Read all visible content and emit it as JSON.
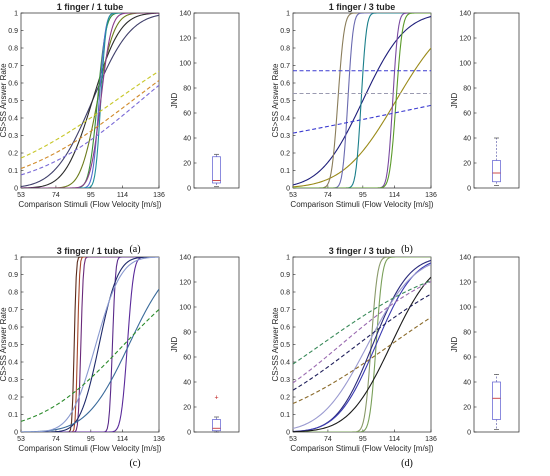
{
  "chart_data": [
    {
      "id": "a",
      "type": "line",
      "title": "1 finger / 1 tube",
      "xlabel": "Comparison Stimuli (Flow Velocity [m/s])",
      "ylabel": "CS>SS Answer Rate",
      "caption": "(a)",
      "xlim": [
        53,
        136
      ],
      "ylim": [
        0,
        1
      ],
      "xticks": [
        "53",
        "74",
        "95",
        "114",
        "136"
      ],
      "yticks": [
        "0",
        "0.1",
        "0.2",
        "0.3",
        "0.4",
        "0.5",
        "0.6",
        "0.7",
        "0.8",
        "0.9",
        "1"
      ],
      "grid": false,
      "series": [
        {
          "mu": 96,
          "sigma": 18,
          "color": "#3f3f6a",
          "style": "solid"
        },
        {
          "mu": 96,
          "sigma": 13,
          "color": "#2a2a2a",
          "style": "solid"
        },
        {
          "mu": 99,
          "sigma": 8,
          "color": "#6c7c1c",
          "style": "solid"
        },
        {
          "mu": 99,
          "sigma": 4,
          "color": "#3a8e3a",
          "style": "solid"
        },
        {
          "mu": 100,
          "sigma": 3,
          "color": "#5a6ad0",
          "style": "solid"
        },
        {
          "mu": 101,
          "sigma": 2.5,
          "color": "#1f8f9a",
          "style": "solid"
        },
        {
          "mu": 101,
          "sigma": 5,
          "color": "#8a3d8a",
          "style": "solid"
        },
        {
          "mu": 110,
          "sigma": 60,
          "color": "#c7c728",
          "style": "dashed"
        },
        {
          "mu": 120,
          "sigma": 55,
          "color": "#d08a2a",
          "style": "dashed"
        },
        {
          "mu": 125,
          "sigma": 50,
          "color": "#7a6ad6",
          "style": "dashed"
        }
      ],
      "jnd": {
        "ylabel": "JND",
        "ylim": [
          0,
          140
        ],
        "yticks": [
          "0",
          "20",
          "40",
          "60",
          "80",
          "100",
          "120",
          "140"
        ],
        "q1": 4,
        "median": 6,
        "q3": 25,
        "whisker_low": 1,
        "whisker_high": 27,
        "outliers": []
      }
    },
    {
      "id": "b",
      "type": "line",
      "title": "1 finger / 3 tube",
      "xlabel": "Comparison Stimuli (Flow Velocity [m/s])",
      "ylabel": "CS>SS Answer Rate",
      "caption": "(b)",
      "xlim": [
        53,
        136
      ],
      "ylim": [
        0,
        1
      ],
      "xticks": [
        "53",
        "74",
        "95",
        "114",
        "136"
      ],
      "yticks": [
        "0",
        "0.1",
        "0.2",
        "0.3",
        "0.4",
        "0.5",
        "0.6",
        "0.7",
        "0.8",
        "0.9",
        "1"
      ],
      "grid": false,
      "series": [
        {
          "mu": 95,
          "sigma": 20,
          "color": "#1e1e7a",
          "style": "solid"
        },
        {
          "mu": 115,
          "sigma": 25,
          "color": "#9a8a18",
          "style": "solid"
        },
        {
          "mu": 80,
          "sigma": 3,
          "color": "#8a7d5a",
          "style": "solid"
        },
        {
          "mu": 86,
          "sigma": 2.5,
          "color": "#6a6ab0",
          "style": "solid"
        },
        {
          "mu": 94,
          "sigma": 2.5,
          "color": "#1a7f8a",
          "style": "solid"
        },
        {
          "mu": 113,
          "sigma": 2.5,
          "color": "#7a4aa0",
          "style": "solid"
        },
        {
          "mu": 115,
          "sigma": 3,
          "color": "#5a9a2a",
          "style": "solid"
        },
        {
          "flat": 0.67,
          "color": "#3a3ad0",
          "style": "dashed"
        },
        {
          "flat": 0.54,
          "color": "#9a9ab0",
          "style": "dashed"
        },
        {
          "mu": 150,
          "sigma": 200,
          "color": "#3a3ad0",
          "style": "dashed"
        }
      ],
      "jnd": {
        "ylabel": "JND",
        "ylim": [
          0,
          140
        ],
        "yticks": [
          "0",
          "20",
          "40",
          "60",
          "80",
          "100",
          "120",
          "140"
        ],
        "q1": 5,
        "median": 12,
        "q3": 22,
        "whisker_low": 2,
        "whisker_high": 40,
        "outliers": []
      }
    },
    {
      "id": "c",
      "type": "line",
      "title": "3 finger / 1 tube",
      "xlabel": "Comparison Stimuli (Flow Velocity [m/s])",
      "ylabel": "CS>SS Answer Rate",
      "caption": "(c)",
      "xlim": [
        53,
        136
      ],
      "ylim": [
        0,
        1
      ],
      "xticks": [
        "53",
        "74",
        "95",
        "114",
        "136"
      ],
      "yticks": [
        "0",
        "0.1",
        "0.2",
        "0.3",
        "0.4",
        "0.5",
        "0.6",
        "0.7",
        "0.8",
        "0.9",
        "1"
      ],
      "grid": false,
      "series": [
        {
          "mu": 85,
          "sigma": 1,
          "color": "#5a2a1a",
          "style": "solid"
        },
        {
          "mu": 87,
          "sigma": 1,
          "color": "#a8472a",
          "style": "solid"
        },
        {
          "mu": 89,
          "sigma": 1.2,
          "color": "#6a2a7a",
          "style": "solid"
        },
        {
          "mu": 108,
          "sigma": 1.5,
          "color": "#5a2a8a",
          "style": "solid"
        },
        {
          "mu": 117,
          "sigma": 3,
          "color": "#5a2a9a",
          "style": "solid"
        },
        {
          "mu": 100,
          "sigma": 9,
          "color": "#1e2a6a",
          "style": "solid"
        },
        {
          "mu": 118,
          "sigma": 20,
          "color": "#3a6a9a",
          "style": "solid"
        },
        {
          "mu": 98,
          "sigma": 12,
          "color": "#8a9ad0",
          "style": "solid"
        },
        {
          "mu": 115,
          "sigma": 40,
          "color": "#2a8a2a",
          "style": "dashed"
        }
      ],
      "jnd": {
        "ylabel": "JND",
        "ylim": [
          0,
          140
        ],
        "yticks": [
          "0",
          "20",
          "40",
          "60",
          "80",
          "100",
          "120",
          "140"
        ],
        "q1": 1,
        "median": 3,
        "q3": 10,
        "whisker_low": 0,
        "whisker_high": 12,
        "outliers": [
          28
        ]
      }
    },
    {
      "id": "d",
      "type": "line",
      "title": "3 finger / 3 tube",
      "xlabel": "Comparison Stimuli (Flow Velocity [m/s])",
      "ylabel": "CS>SS Answer Rate",
      "caption": "(d)",
      "xlim": [
        53,
        136
      ],
      "ylim": [
        0,
        1
      ],
      "xticks": [
        "53",
        "74",
        "95",
        "114",
        "136"
      ],
      "yticks": [
        "0",
        "0.1",
        "0.2",
        "0.3",
        "0.4",
        "0.5",
        "0.6",
        "0.7",
        "0.8",
        "0.9",
        "1"
      ],
      "grid": false,
      "series": [
        {
          "mu": 100,
          "sigma": 3,
          "color": "#8a9a6a",
          "style": "solid"
        },
        {
          "mu": 103,
          "sigma": 3,
          "color": "#7aa05a",
          "style": "solid"
        },
        {
          "mu": 101,
          "sigma": 17,
          "color": "#2a2a7a",
          "style": "solid"
        },
        {
          "mu": 103,
          "sigma": 18,
          "color": "#3a3ab0",
          "style": "solid"
        },
        {
          "mu": 98,
          "sigma": 22,
          "color": "#9a9ad0",
          "style": "solid"
        },
        {
          "mu": 112,
          "sigma": 20,
          "color": "#1a1a1a",
          "style": "solid"
        },
        {
          "mu": 70,
          "sigma": 60,
          "color": "#3a8a5a",
          "style": "dashed"
        },
        {
          "mu": 82,
          "sigma": 50,
          "color": "#9a6ab0",
          "style": "dashed"
        },
        {
          "mu": 92,
          "sigma": 55,
          "color": "#1e1e5a",
          "style": "dashed"
        },
        {
          "mu": 112,
          "sigma": 60,
          "color": "#8a6a2a",
          "style": "dashed"
        }
      ],
      "jnd": {
        "ylabel": "JND",
        "ylim": [
          0,
          140
        ],
        "yticks": [
          "0",
          "20",
          "40",
          "60",
          "80",
          "100",
          "120",
          "140"
        ],
        "q1": 10,
        "median": 27,
        "q3": 40,
        "whisker_low": 2,
        "whisker_high": 46,
        "outliers": []
      }
    }
  ]
}
